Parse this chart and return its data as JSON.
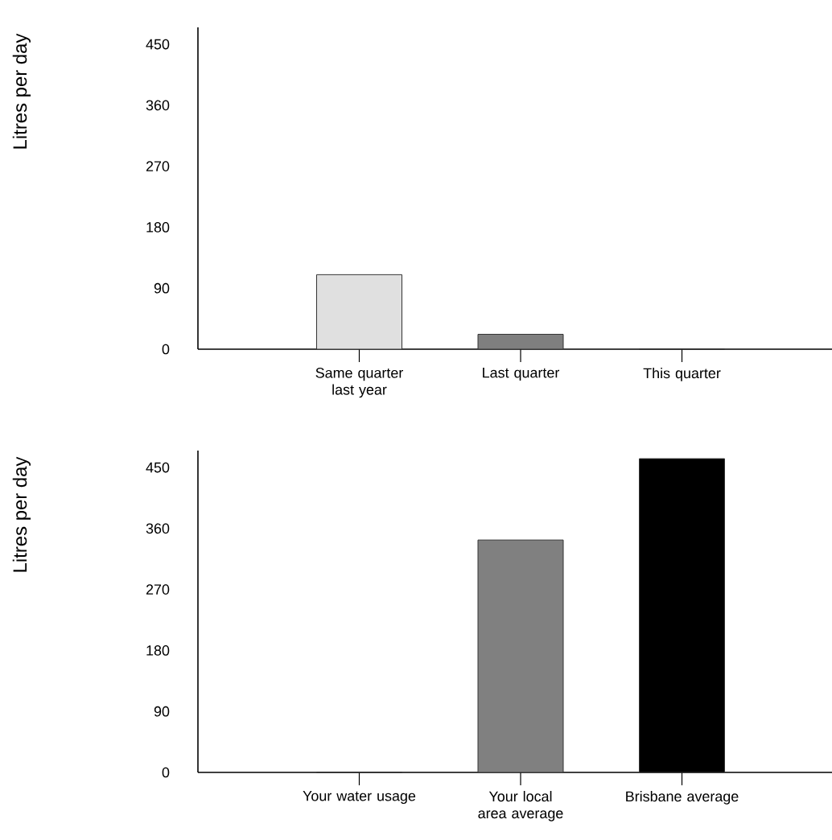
{
  "chart_data": [
    {
      "type": "bar",
      "ylabel": "Litres per day",
      "categories": [
        "Same quarter last year",
        "Last quarter",
        "This quarter"
      ],
      "values": [
        110,
        22,
        0
      ],
      "colors": [
        "#e0e0e0",
        "#7f7f7f",
        "#7f7f7f"
      ],
      "ylim": [
        0,
        475
      ],
      "yticks": [
        0,
        90,
        180,
        270,
        360,
        450
      ]
    },
    {
      "type": "bar",
      "ylabel": "Litres per day",
      "categories": [
        "Your water usage",
        "Your local area average",
        "Brisbane average"
      ],
      "values": [
        0,
        343,
        463
      ],
      "colors": [
        "#808080",
        "#808080",
        "#000000"
      ],
      "ylim": [
        0,
        475
      ],
      "yticks": [
        0,
        90,
        180,
        270,
        360,
        450
      ]
    }
  ]
}
